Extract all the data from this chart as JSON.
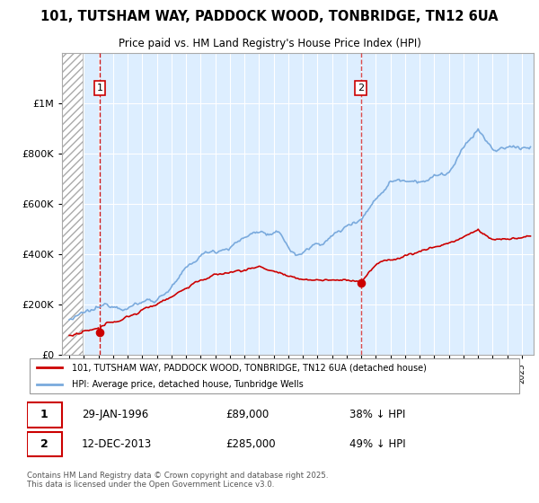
{
  "title": "101, TUTSHAM WAY, PADDOCK WOOD, TONBRIDGE, TN12 6UA",
  "subtitle": "Price paid vs. HM Land Registry's House Price Index (HPI)",
  "hpi_label": "HPI: Average price, detached house, Tunbridge Wells",
  "property_label": "101, TUTSHAM WAY, PADDOCK WOOD, TONBRIDGE, TN12 6UA (detached house)",
  "sale1_date": "29-JAN-1996",
  "sale1_price": 89000,
  "sale1_hpi_pct": "38% ↓ HPI",
  "sale2_date": "12-DEC-2013",
  "sale2_price": 285000,
  "sale2_hpi_pct": "49% ↓ HPI",
  "sale1_x": 1996.08,
  "sale2_x": 2013.96,
  "footer": "Contains HM Land Registry data © Crown copyright and database right 2025.\nThis data is licensed under the Open Government Licence v3.0.",
  "hpi_color": "#7aaadd",
  "property_color": "#cc0000",
  "sale_dot_color": "#cc0000",
  "dashed_line_color": "#cc0000",
  "ylim_max": 1200000,
  "background_color": "#ffffff",
  "plot_bg_color": "#ddeeff"
}
